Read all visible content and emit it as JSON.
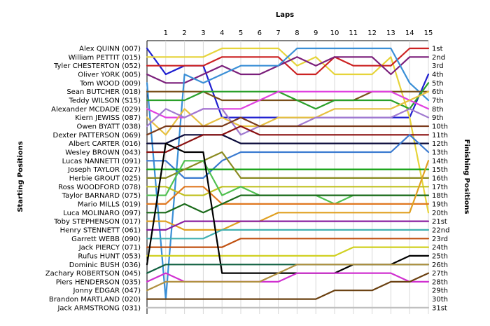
{
  "chart_data": {
    "type": "line",
    "title": "",
    "xlabel": "Laps",
    "ylabel_left": "Starting Positions",
    "ylabel_right": "Finishing Positions",
    "laps": [
      1,
      2,
      3,
      4,
      5,
      6,
      7,
      8,
      9,
      10,
      11,
      12,
      13,
      14,
      15
    ],
    "finish_labels": [
      "1st",
      "2nd",
      "3rd",
      "4th",
      "5th",
      "6th",
      "7th",
      "8th",
      "9th",
      "10th",
      "11th",
      "12th",
      "13th",
      "14th",
      "15th",
      "16th",
      "17th",
      "18th",
      "19th",
      "20th",
      "21st",
      "22nd",
      "23rd",
      "24th",
      "25th",
      "26th",
      "27th",
      "28th",
      "29th",
      "30th",
      "31st"
    ],
    "drivers": [
      {
        "name": "Alex QUINN (007)",
        "color": "#1f1fd0",
        "positions": [
          4,
          3,
          3,
          9,
          9,
          9,
          9,
          9,
          9,
          9,
          9,
          9,
          9,
          9,
          4
        ]
      },
      {
        "name": "William PETTIT (015)",
        "color": "#e6d43a",
        "positions": [
          2,
          2,
          2,
          1,
          1,
          1,
          1,
          3,
          2,
          4,
          4,
          4,
          2,
          9,
          20
        ]
      },
      {
        "name": "Tyler CHESTERTON (052)",
        "color": "#cc2222",
        "positions": [
          3,
          3,
          3,
          2,
          2,
          2,
          2,
          4,
          4,
          2,
          3,
          3,
          3,
          1,
          1
        ]
      },
      {
        "name": "Oliver YORK (005)",
        "color": "#7b1f7b",
        "positions": [
          5,
          5,
          4,
          3,
          4,
          4,
          3,
          2,
          3,
          2,
          2,
          2,
          4,
          2,
          2
        ]
      },
      {
        "name": "Tom WOOD (009)",
        "color": "#3a8fd6",
        "positions": [
          30,
          4,
          5,
          4,
          3,
          3,
          3,
          1,
          1,
          1,
          1,
          1,
          1,
          5,
          7
        ]
      },
      {
        "name": "Sean BUTCHER (018)",
        "color": "#7a4f1a",
        "positions": [
          6,
          6,
          6,
          7,
          7,
          7,
          7,
          7,
          7,
          7,
          7,
          6,
          6,
          6,
          6
        ]
      },
      {
        "name": "Teddy WILSON (S15)",
        "color": "#2aa02a",
        "positions": [
          7,
          7,
          6,
          6,
          6,
          6,
          6,
          7,
          8,
          7,
          7,
          7,
          7,
          8,
          5
        ]
      },
      {
        "name": "Alexander MCDADE (029)",
        "color": "#e040e0",
        "positions": [
          9,
          9,
          8,
          8,
          8,
          7,
          6,
          6,
          6,
          6,
          6,
          6,
          6,
          7,
          8
        ]
      },
      {
        "name": "Kiern JEWISS (087)",
        "color": "#e6c040",
        "positions": [
          11,
          8,
          10,
          9,
          10,
          10,
          9,
          9,
          9,
          8,
          8,
          8,
          8,
          7,
          6
        ]
      },
      {
        "name": "Owen BYATT (038)",
        "color": "#a07ad0",
        "positions": [
          8,
          9,
          8,
          8,
          11,
          10,
          10,
          10,
          9,
          9,
          9,
          9,
          9,
          8,
          9
        ]
      },
      {
        "name": "Dexter PATTERSON (069)",
        "color": "#7a3a1a",
        "positions": [
          10,
          10,
          10,
          10,
          9,
          10,
          10,
          10,
          10,
          10,
          10,
          10,
          10,
          10,
          10
        ]
      },
      {
        "name": "Albert CARTER (016)",
        "color": "#0a0a3a",
        "positions": [
          12,
          11,
          11,
          11,
          12,
          12,
          12,
          12,
          12,
          12,
          12,
          12,
          12,
          12,
          12
        ]
      },
      {
        "name": "Wesley BROWN (043)",
        "color": "#8a1010",
        "positions": [
          13,
          12,
          11,
          11,
          10,
          11,
          11,
          11,
          11,
          11,
          11,
          11,
          11,
          11,
          11
        ]
      },
      {
        "name": "Lucas NANNETTI (091)",
        "color": "#3a7ad0",
        "positions": [
          14,
          16,
          16,
          14,
          13,
          13,
          13,
          13,
          13,
          13,
          13,
          13,
          13,
          11,
          13
        ]
      },
      {
        "name": "Joseph TAYLOR (027)",
        "color": "#10a010",
        "positions": [
          15,
          15,
          15,
          15,
          15,
          15,
          15,
          15,
          15,
          15,
          15,
          15,
          15,
          15,
          15
        ]
      },
      {
        "name": "Herbie GROUT (025)",
        "color": "#8a8a20",
        "positions": [
          16,
          15,
          14,
          13,
          16,
          16,
          16,
          16,
          16,
          16,
          16,
          16,
          16,
          16,
          16
        ]
      },
      {
        "name": "Ross WOODFORD (078)",
        "color": "#c0c020",
        "positions": [
          17,
          18,
          18,
          17,
          17,
          17,
          17,
          17,
          17,
          17,
          17,
          17,
          17,
          17,
          17
        ]
      },
      {
        "name": "Taylor BARNARD (075)",
        "color": "#50c050",
        "positions": [
          18,
          14,
          14,
          18,
          17,
          18,
          18,
          18,
          18,
          19,
          18,
          18,
          18,
          18,
          18
        ]
      },
      {
        "name": "Mario MILLS (019)",
        "color": "#e07820",
        "positions": [
          19,
          17,
          17,
          19,
          19,
          19,
          19,
          19,
          19,
          19,
          19,
          19,
          19,
          19,
          19
        ]
      },
      {
        "name": "Luca MOLINARO (097)",
        "color": "#1a6a1a",
        "positions": [
          20,
          19,
          20,
          19,
          18,
          18,
          18,
          18,
          18,
          18,
          18,
          18,
          18,
          18,
          18
        ]
      },
      {
        "name": "Toby STEPHENSON (017)",
        "color": "#e0a020",
        "positions": [
          21,
          22,
          22,
          22,
          21,
          21,
          20,
          20,
          20,
          20,
          20,
          20,
          20,
          20,
          14
        ]
      },
      {
        "name": "Henry STENNETT (061)",
        "color": "#8a20a0",
        "positions": [
          22,
          21,
          21,
          21,
          21,
          21,
          21,
          21,
          21,
          21,
          21,
          21,
          21,
          21,
          21
        ]
      },
      {
        "name": "Garrett WEBB (090)",
        "color": "#40b0b0",
        "positions": [
          23,
          23,
          23,
          22,
          22,
          22,
          22,
          22,
          22,
          22,
          22,
          22,
          22,
          22,
          22
        ]
      },
      {
        "name": "Jack PIERCY (071)",
        "color": "#c05010",
        "positions": [
          24,
          24,
          24,
          24,
          23,
          23,
          23,
          23,
          23,
          23,
          23,
          23,
          23,
          23,
          23
        ]
      },
      {
        "name": "Rufus HUNT (053)",
        "color": "#d0d020",
        "positions": [
          25,
          25,
          25,
          25,
          25,
          25,
          25,
          25,
          25,
          25,
          24,
          24,
          24,
          24,
          24
        ]
      },
      {
        "name": "Dominic BUSH (036)",
        "color": "#000000",
        "positions": [
          12,
          13,
          13,
          27,
          27,
          27,
          27,
          27,
          27,
          27,
          26,
          26,
          26,
          25,
          25
        ]
      },
      {
        "name": "Zachary ROBERTSON (045)",
        "color": "#106040",
        "positions": [
          26,
          26,
          26,
          26,
          26,
          26,
          26,
          26,
          26,
          26,
          26,
          26,
          26,
          26,
          26
        ]
      },
      {
        "name": "Piers HENDERSON (035)",
        "color": "#d030d0",
        "positions": [
          27,
          28,
          28,
          28,
          28,
          28,
          28,
          27,
          27,
          27,
          27,
          27,
          27,
          28,
          28
        ]
      },
      {
        "name": "Jonny EDGAR (047)",
        "color": "#b09040",
        "positions": [
          28,
          28,
          28,
          28,
          28,
          28,
          27,
          26,
          26,
          26,
          26,
          26,
          26,
          26,
          26
        ]
      },
      {
        "name": "Brandon MARTLAND (020)",
        "color": "#6a4010",
        "positions": [
          30,
          30,
          30,
          30,
          30,
          30,
          30,
          30,
          30,
          29,
          29,
          29,
          28,
          28,
          27
        ]
      },
      {
        "name": "Jack ARMSTRONG (031)",
        "color": "#c0c0c0",
        "positions": [
          31,
          31,
          31,
          31,
          31,
          31,
          31,
          31,
          31,
          31,
          31,
          31,
          31,
          31,
          31
        ]
      }
    ]
  }
}
